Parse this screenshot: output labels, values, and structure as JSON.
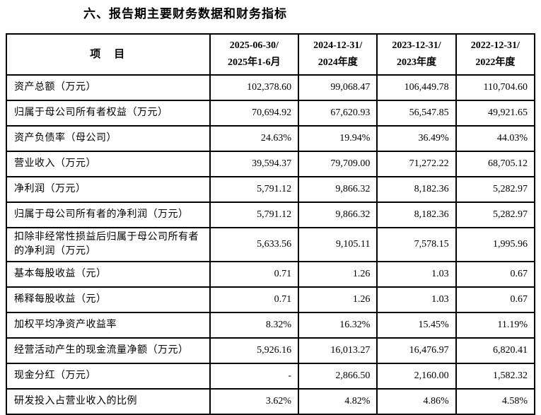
{
  "page": {
    "title": "六、报告期主要财务数据和财务指标"
  },
  "colors": {
    "text": "#000000",
    "border": "#000000",
    "background": "#ffffff"
  },
  "table": {
    "header": {
      "item_label": "项　目",
      "periods": [
        {
          "line1": "2025-06-30/",
          "line2": "2025年1-6月"
        },
        {
          "line1": "2024-12-31/",
          "line2": "2024年度"
        },
        {
          "line1": "2023-12-31/",
          "line2": "2023年度"
        },
        {
          "line1": "2022-12-31/",
          "line2": "2022年度"
        }
      ]
    },
    "rows": [
      {
        "label": "资产总额（万元）",
        "values": [
          "102,378.60",
          "99,068.47",
          "106,449.78",
          "110,704.60"
        ]
      },
      {
        "label": "归属于母公司所有者权益（万元）",
        "values": [
          "70,694.92",
          "67,620.93",
          "56,547.85",
          "49,921.65"
        ]
      },
      {
        "label": "资产负债率（母公司）",
        "values": [
          "24.63%",
          "19.94%",
          "36.49%",
          "44.03%"
        ]
      },
      {
        "label": "营业收入（万元）",
        "values": [
          "39,594.37",
          "79,709.00",
          "71,272.22",
          "68,705.12"
        ]
      },
      {
        "label": "净利润（万元）",
        "values": [
          "5,791.12",
          "9,866.32",
          "8,182.36",
          "5,282.97"
        ]
      },
      {
        "label": "归属于母公司所有者的净利润（万元）",
        "values": [
          "5,791.12",
          "9,866.32",
          "8,182.36",
          "5,282.97"
        ]
      },
      {
        "label": "扣除非经常性损益后归属于母公司所有者的净利润（万元）",
        "values": [
          "5,633.56",
          "9,105.11",
          "7,578.15",
          "1,995.96"
        ]
      },
      {
        "label": "基本每股收益（元）",
        "values": [
          "0.71",
          "1.26",
          "1.03",
          "0.67"
        ]
      },
      {
        "label": "稀释每股收益（元）",
        "values": [
          "0.71",
          "1.26",
          "1.03",
          "0.67"
        ]
      },
      {
        "label": "加权平均净资产收益率",
        "values": [
          "8.32%",
          "16.32%",
          "15.45%",
          "11.19%"
        ]
      },
      {
        "label": "经营活动产生的现金流量净额（万元）",
        "values": [
          "5,926.16",
          "16,013.27",
          "16,476.97",
          "6,820.41"
        ]
      },
      {
        "label": "现金分红（万元）",
        "values": [
          "-",
          "2,866.50",
          "2,160.00",
          "1,582.32"
        ]
      },
      {
        "label": "研发投入占营业收入的比例",
        "values": [
          "3.62%",
          "4.82%",
          "4.86%",
          "4.58%"
        ]
      }
    ]
  }
}
